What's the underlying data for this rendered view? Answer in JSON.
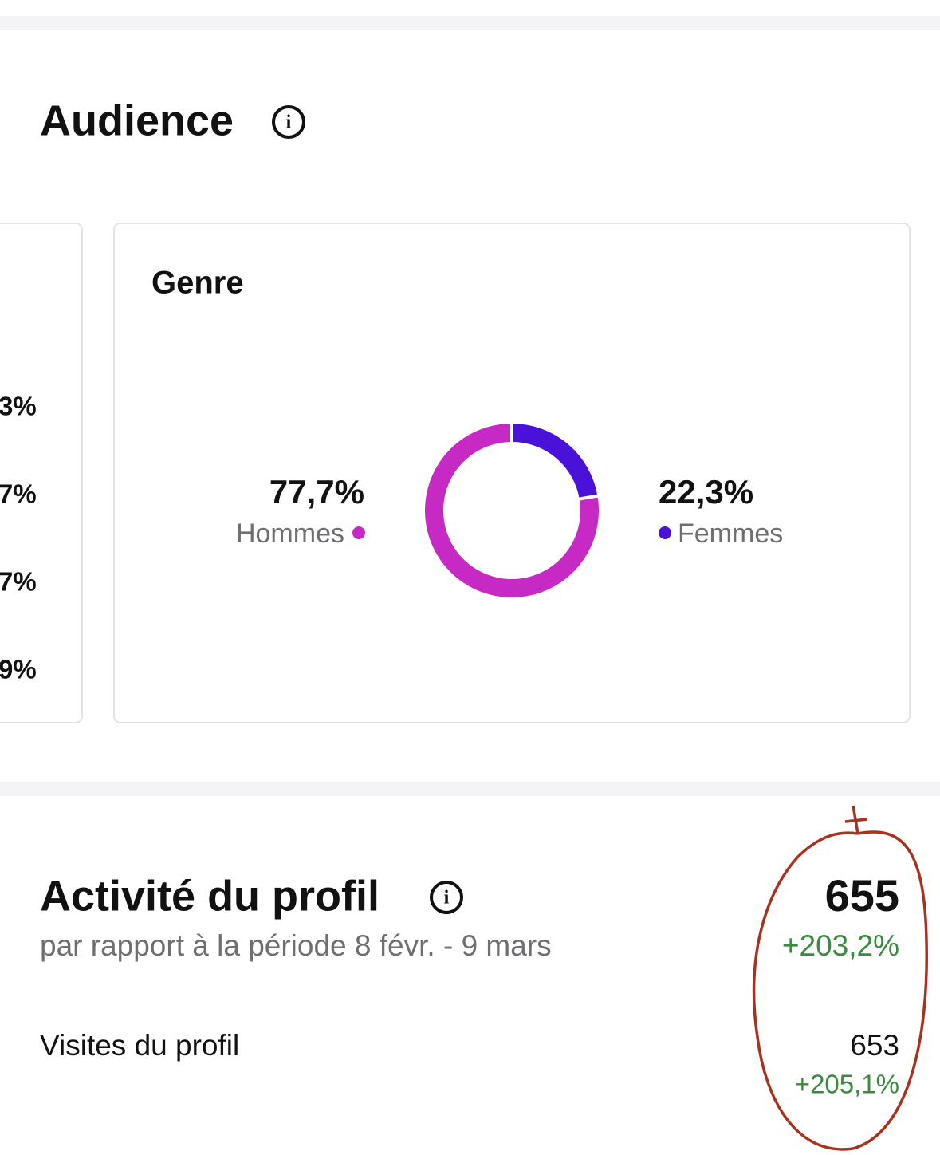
{
  "audience": {
    "title": "Audience"
  },
  "left_card": {
    "texts": [
      "3%",
      "7%",
      "7%",
      "9%"
    ]
  },
  "chart_data": {
    "type": "donut",
    "title": "Genre",
    "categories": [
      "Hommes",
      "Femmes"
    ],
    "values": [
      77.7,
      22.3
    ],
    "value_labels": [
      "77,7%",
      "22,3%"
    ],
    "colors": [
      "#c72ac4",
      "#4a12d8"
    ]
  },
  "profile_activity": {
    "title": "Activité du profil",
    "subtitle": "par rapport à la période 8 févr. - 9 mars",
    "total": "655",
    "total_change": "+203,2%",
    "rows": [
      {
        "label": "Visites du profil",
        "value": "653",
        "change": "+205,1%"
      }
    ]
  }
}
